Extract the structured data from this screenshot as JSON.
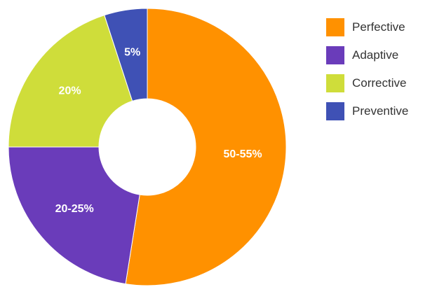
{
  "chart_data": {
    "type": "pie",
    "style": "donut",
    "title": "",
    "categories": [
      "Perfective",
      "Adaptive",
      "Corrective",
      "Preventive"
    ],
    "values": [
      52.5,
      22.5,
      20,
      5
    ],
    "labels": [
      "50-55%",
      "20-25%",
      "20%",
      "5%"
    ],
    "colors": [
      "#FF9100",
      "#6A3CBA",
      "#CFDD3A",
      "#3F51B5"
    ],
    "start_angle": "top (12 o'clock), clockwise",
    "legend_position": "right"
  },
  "legend": {
    "items": [
      {
        "label": "Perfective",
        "color": "#FF9100"
      },
      {
        "label": "Adaptive",
        "color": "#6A3CBA"
      },
      {
        "label": "Corrective",
        "color": "#CFDD3A"
      },
      {
        "label": "Preventive",
        "color": "#3F51B5"
      }
    ]
  }
}
